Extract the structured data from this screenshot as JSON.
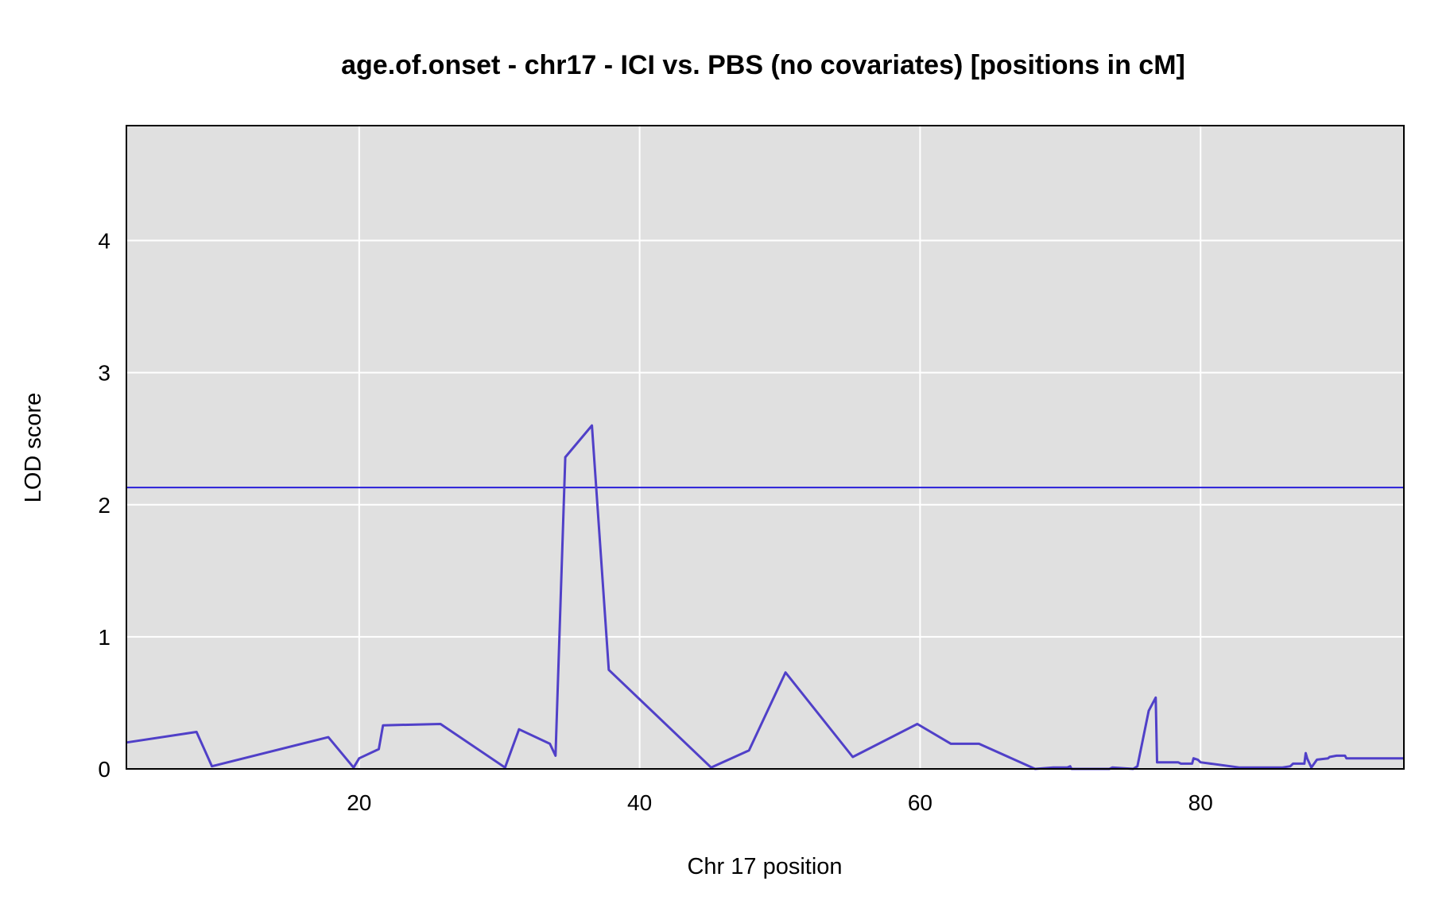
{
  "chart_data": {
    "type": "line",
    "title": "age.of.onset - chr17 - ICI vs. PBS (no covariates) [positions in cM]",
    "xlabel": "Chr 17 position",
    "ylabel": "LOD score",
    "xlim": [
      3.4,
      94.5
    ],
    "ylim": [
      0,
      4.87
    ],
    "x_ticks": [
      20,
      40,
      60,
      80
    ],
    "y_ticks": [
      0,
      1,
      2,
      3,
      4
    ],
    "grid": true,
    "background": "#e0e0e0",
    "threshold": {
      "value": 2.13,
      "color": "#2a1fd9"
    },
    "series": [
      {
        "color": "#5040c8",
        "x": [
          3.4,
          8.4,
          9.5,
          17.8,
          19.6,
          20.0,
          21.4,
          21.7,
          25.8,
          30.4,
          31.4,
          33.6,
          34.0,
          34.7,
          36.6,
          37.8,
          45.1,
          47.8,
          50.4,
          55.2,
          59.8,
          62.2,
          64.2,
          68.2,
          69.5,
          70.5,
          70.7,
          70.8,
          73.5,
          73.7,
          75.2,
          75.5,
          76.3,
          76.8,
          76.9,
          78.4,
          78.6,
          79.4,
          79.5,
          79.8,
          80.0,
          82.8,
          84.5,
          85.8,
          86.4,
          86.6,
          87.4,
          87.5,
          87.6,
          87.9,
          88.3,
          89.1,
          89.2,
          89.7,
          90.3,
          90.4,
          94.5
        ],
        "y": [
          0.2,
          0.28,
          0.02,
          0.24,
          0.01,
          0.08,
          0.15,
          0.33,
          0.34,
          0.01,
          0.3,
          0.19,
          0.1,
          2.36,
          2.6,
          0.75,
          0.01,
          0.14,
          0.73,
          0.09,
          0.34,
          0.19,
          0.19,
          0.0,
          0.01,
          0.01,
          0.02,
          0.0,
          0.0,
          0.01,
          0.0,
          0.02,
          0.44,
          0.54,
          0.05,
          0.05,
          0.04,
          0.04,
          0.08,
          0.07,
          0.05,
          0.01,
          0.01,
          0.01,
          0.02,
          0.04,
          0.04,
          0.12,
          0.08,
          0.01,
          0.07,
          0.08,
          0.09,
          0.1,
          0.1,
          0.08,
          0.08
        ]
      }
    ]
  }
}
